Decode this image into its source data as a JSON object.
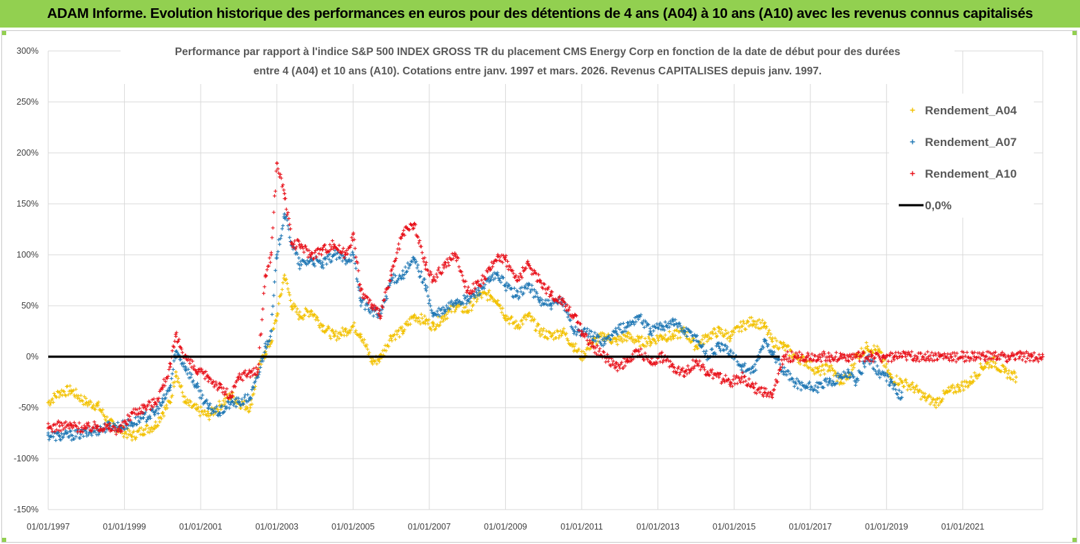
{
  "banner": {
    "title": "ADAM Informe. Evolution historique des performances en euros pour des détentions de 4 ans (A04) à 10 ans (A10) avec les revenus connus capitalisés"
  },
  "chart_data": {
    "type": "scatter",
    "title_lines": [
      "Performance par rapport à l'indice S&P 500 INDEX GROSS TR  du placement CMS Energy Corp en fonction de la date de début pour des durées",
      "entre 4 (A04) et 10 ans (A10). Cotations entre janv. 1997 et mars. 2026. Revenus CAPITALISES depuis janv. 1997."
    ],
    "xlabel": "",
    "ylabel": "",
    "x_range": [
      1997.0,
      2023.1
    ],
    "ylim": [
      -150,
      300
    ],
    "y_ticks": [
      300,
      250,
      200,
      150,
      100,
      50,
      0,
      -50,
      -100,
      -150
    ],
    "y_tick_labels": [
      "300%",
      "250%",
      "200%",
      "150%",
      "100%",
      "50%",
      "0%",
      "-50%",
      "-100%",
      "-150%"
    ],
    "x_ticks": [
      1997,
      1999,
      2001,
      2003,
      2005,
      2007,
      2009,
      2011,
      2013,
      2015,
      2017,
      2019,
      2021
    ],
    "x_tick_labels": [
      "01/01/1997",
      "01/01/1999",
      "01/01/2001",
      "01/01/2003",
      "01/01/2005",
      "01/01/2007",
      "01/01/2009",
      "01/01/2011",
      "01/01/2013",
      "01/01/2015",
      "01/01/2017",
      "01/01/2019",
      "01/01/2021"
    ],
    "grid": true,
    "legend_position": "top-right",
    "series": [
      {
        "name": "Rendement_A04",
        "color": "#f2c100",
        "marker": "plus",
        "x": [
          1997.0,
          1997.3,
          1997.6,
          1998.0,
          1998.3,
          1998.6,
          1998.9,
          1999.2,
          1999.5,
          1999.8,
          2000.0,
          2000.2,
          2000.35,
          2000.6,
          2000.9,
          2001.2,
          2001.5,
          2001.8,
          2002.0,
          2002.3,
          2002.5,
          2002.7,
          2002.85,
          2003.0,
          2003.2,
          2003.4,
          2003.6,
          2003.9,
          2004.2,
          2004.5,
          2004.8,
          2005.0,
          2005.2,
          2005.5,
          2005.7,
          2006.0,
          2006.3,
          2006.6,
          2006.9,
          2007.1,
          2007.4,
          2007.7,
          2008.0,
          2008.3,
          2008.6,
          2008.8,
          2009.0,
          2009.3,
          2009.6,
          2009.9,
          2010.2,
          2010.5,
          2010.8,
          2011.0,
          2011.3,
          2011.6,
          2011.9,
          2012.2,
          2012.5,
          2012.8,
          2013.1,
          2013.4,
          2013.7,
          2014.0,
          2014.3,
          2014.6,
          2014.9,
          2015.2,
          2015.5,
          2015.8,
          2016.0,
          2016.3,
          2016.6,
          2016.9,
          2017.2,
          2017.5,
          2017.8,
          2018.0,
          2018.2,
          2018.5,
          2018.8,
          2019.1,
          2019.4,
          2019.7,
          2020.0,
          2020.3,
          2020.6,
          2020.9,
          2021.2,
          2021.5,
          2021.8,
          2022.1,
          2022.4
        ],
        "values": [
          -45,
          -35,
          -33,
          -45,
          -48,
          -65,
          -72,
          -78,
          -72,
          -68,
          -55,
          -45,
          -15,
          -45,
          -52,
          -58,
          -48,
          -38,
          -45,
          -50,
          -15,
          5,
          15,
          40,
          80,
          50,
          40,
          45,
          30,
          20,
          25,
          30,
          22,
          -5,
          -2,
          20,
          25,
          40,
          35,
          30,
          40,
          50,
          45,
          60,
          60,
          55,
          40,
          30,
          40,
          25,
          20,
          25,
          10,
          0,
          15,
          20,
          15,
          20,
          15,
          15,
          20,
          20,
          25,
          10,
          20,
          25,
          20,
          30,
          35,
          30,
          15,
          10,
          0,
          -5,
          -15,
          -10,
          -25,
          -20,
          0,
          10,
          5,
          -20,
          -25,
          -30,
          -40,
          -45,
          -35,
          -30,
          -25,
          -10,
          -5,
          -15,
          -20
        ]
      },
      {
        "name": "Rendement_A07",
        "color": "#1f77b4",
        "marker": "plus",
        "x": [
          1997.0,
          1997.3,
          1997.6,
          1998.0,
          1998.3,
          1998.6,
          1998.9,
          1999.2,
          1999.5,
          1999.8,
          2000.0,
          2000.2,
          2000.35,
          2000.6,
          2000.9,
          2001.2,
          2001.5,
          2001.8,
          2002.0,
          2002.3,
          2002.5,
          2002.7,
          2002.85,
          2003.0,
          2003.2,
          2003.4,
          2003.6,
          2003.9,
          2004.2,
          2004.5,
          2004.8,
          2005.0,
          2005.2,
          2005.5,
          2005.7,
          2006.0,
          2006.3,
          2006.6,
          2006.9,
          2007.1,
          2007.4,
          2007.7,
          2008.0,
          2008.3,
          2008.6,
          2008.8,
          2009.0,
          2009.3,
          2009.6,
          2009.9,
          2010.2,
          2010.5,
          2010.8,
          2011.0,
          2011.3,
          2011.6,
          2011.9,
          2012.2,
          2012.5,
          2012.8,
          2013.1,
          2013.4,
          2013.7,
          2014.0,
          2014.3,
          2014.6,
          2014.9,
          2015.2,
          2015.5,
          2015.8,
          2016.0,
          2016.3,
          2016.6,
          2016.9,
          2017.2,
          2017.5,
          2017.8,
          2018.0,
          2018.2,
          2018.5,
          2018.8,
          2019.1,
          2019.4
        ],
        "values": [
          -77,
          -78,
          -77,
          -75,
          -72,
          -68,
          -68,
          -65,
          -60,
          -55,
          -45,
          -30,
          5,
          -10,
          -30,
          -50,
          -55,
          -45,
          -45,
          -40,
          -20,
          10,
          25,
          100,
          140,
          110,
          90,
          95,
          90,
          100,
          95,
          100,
          55,
          45,
          40,
          75,
          80,
          95,
          70,
          40,
          45,
          55,
          55,
          65,
          75,
          80,
          70,
          60,
          70,
          55,
          50,
          55,
          25,
          25,
          20,
          15,
          25,
          30,
          40,
          25,
          30,
          35,
          25,
          20,
          0,
          10,
          5,
          -10,
          -15,
          15,
          5,
          -15,
          -25,
          -30,
          -30,
          -25,
          -20,
          -15,
          -25,
          0,
          -15,
          -25,
          -40
        ]
      },
      {
        "name": "Rendement_A10",
        "color": "#e8111a",
        "marker": "plus",
        "x": [
          1997.0,
          1997.3,
          1997.6,
          1998.0,
          1998.3,
          1998.6,
          1998.9,
          1999.2,
          1999.5,
          1999.8,
          2000.0,
          2000.2,
          2000.35,
          2000.6,
          2000.9,
          2001.2,
          2001.5,
          2001.8,
          2002.0,
          2002.3,
          2002.5,
          2002.7,
          2002.85,
          2003.0,
          2003.2,
          2003.4,
          2003.6,
          2003.9,
          2004.2,
          2004.5,
          2004.8,
          2005.0,
          2005.2,
          2005.5,
          2005.7,
          2006.0,
          2006.3,
          2006.6,
          2006.9,
          2007.1,
          2007.4,
          2007.7,
          2008.0,
          2008.3,
          2008.6,
          2008.8,
          2009.0,
          2009.3,
          2009.6,
          2009.9,
          2010.2,
          2010.5,
          2010.8,
          2011.0,
          2011.3,
          2011.6,
          2011.9,
          2012.2,
          2012.5,
          2012.8,
          2013.1,
          2013.4,
          2013.7,
          2014.0,
          2014.3,
          2014.6,
          2014.9,
          2015.2,
          2015.5,
          2015.8,
          2016.0,
          2016.3,
          2016.6,
          2016.9,
          2017.2,
          2017.5,
          2017.8,
          2018.0,
          2018.3,
          2018.6,
          2018.9,
          2019.2,
          2019.5,
          2019.8,
          2020.1,
          2020.4,
          2020.7,
          2021.0,
          2021.3,
          2021.6,
          2021.9,
          2022.2,
          2022.5,
          2022.8,
          2023.1
        ],
        "values": [
          -70,
          -68,
          -68,
          -70,
          -68,
          -70,
          -72,
          -55,
          -50,
          -45,
          -30,
          -10,
          20,
          0,
          -15,
          -20,
          -30,
          -40,
          -20,
          -15,
          -15,
          80,
          100,
          190,
          160,
          110,
          110,
          100,
          105,
          110,
          100,
          120,
          65,
          50,
          40,
          80,
          120,
          130,
          90,
          75,
          90,
          100,
          65,
          70,
          85,
          100,
          95,
          75,
          90,
          75,
          60,
          55,
          40,
          25,
          10,
          0,
          -10,
          -5,
          5,
          -5,
          0,
          -10,
          -15,
          -5,
          -15,
          -20,
          -25,
          -20,
          -30,
          -35,
          -40,
          0,
          0,
          0,
          0,
          0,
          0,
          0,
          0,
          0,
          0,
          0,
          0,
          0,
          0,
          0,
          0,
          0,
          0,
          0,
          0,
          0,
          0,
          0,
          0
        ]
      },
      {
        "name": "0,0%",
        "color": "#000000",
        "marker": "line",
        "x": [
          1997.0,
          2016.2
        ],
        "values": [
          0,
          0
        ]
      }
    ]
  }
}
